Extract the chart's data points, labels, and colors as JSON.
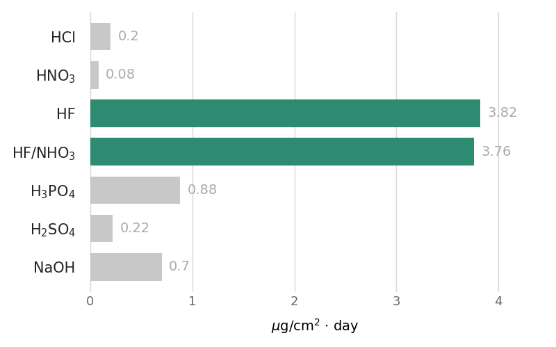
{
  "categories": [
    "HCl",
    "HNO$_3$",
    "HF",
    "HF/NHO$_3$",
    "H$_3$PO$_4$",
    "H$_2$SO$_4$",
    "NaOH"
  ],
  "values": [
    0.2,
    0.08,
    3.82,
    3.76,
    0.88,
    0.22,
    0.7
  ],
  "bar_colors": [
    "#c8c8c8",
    "#c8c8c8",
    "#2e8b72",
    "#2e8b72",
    "#c8c8c8",
    "#c8c8c8",
    "#c8c8c8"
  ],
  "value_labels": [
    "0.2",
    "0.08",
    "3.82",
    "3.76",
    "0.88",
    "0.22",
    "0.7"
  ],
  "xlabel": "$\\mu$g/cm$^2$ $\\cdot$ day",
  "xlim": [
    -0.05,
    4.45
  ],
  "xticks": [
    0,
    1,
    2,
    3,
    4
  ],
  "background_color": "#ffffff",
  "grid_color": "#d8d8d8",
  "label_color": "#aaaaaa",
  "bar_height": 0.72,
  "value_fontsize": 14,
  "tick_fontsize": 13,
  "xlabel_fontsize": 14,
  "ylabel_fontsize": 15
}
